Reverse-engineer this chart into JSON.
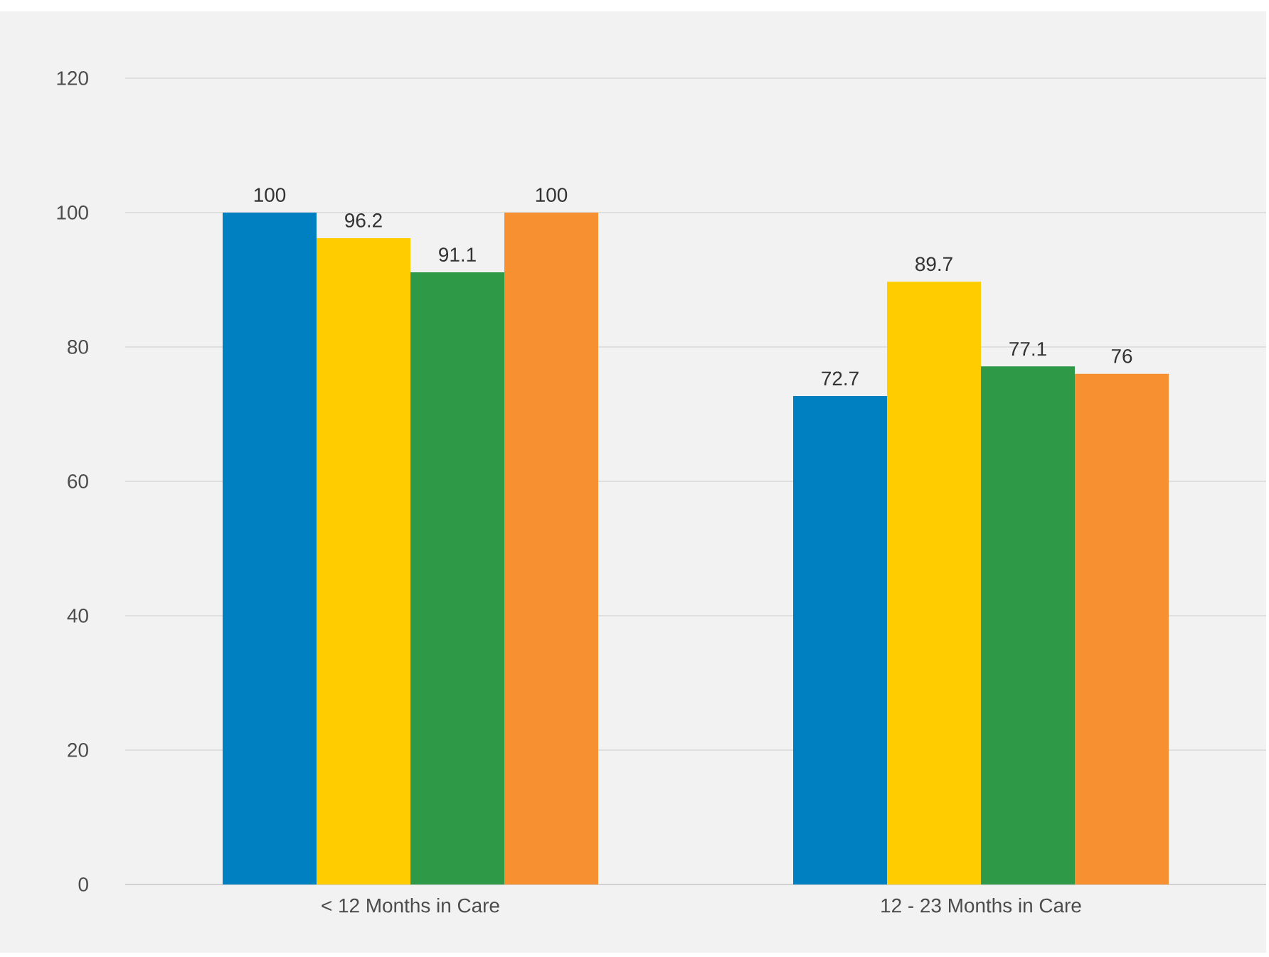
{
  "chart_data": {
    "type": "bar",
    "categories": [
      "< 12 Months in Care",
      "12 - 23 Months in Care"
    ],
    "series": [
      {
        "color": "#0080c0",
        "values": [
          100,
          72.7
        ]
      },
      {
        "color": "#ffcc00",
        "values": [
          96.2,
          89.7
        ]
      },
      {
        "color": "#2e9a48",
        "values": [
          91.1,
          77.1
        ]
      },
      {
        "color": "#f79030",
        "values": [
          100,
          76
        ]
      }
    ],
    "ylim": [
      0,
      120
    ],
    "yticks": [
      0,
      20,
      40,
      60,
      80,
      100,
      120
    ],
    "grid": "y",
    "data_labels": true
  }
}
